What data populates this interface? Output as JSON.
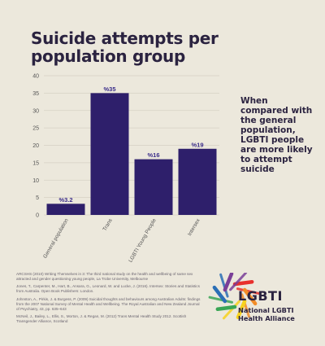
{
  "chart_data": {
    "type": "bar",
    "title": "Suicide attempts per population group",
    "categories": [
      "General population",
      "Trans",
      "LGBTI Young People",
      "Intersex"
    ],
    "values": [
      3.2,
      35,
      16,
      19
    ],
    "data_labels": [
      "%3.2",
      "%35",
      "%16",
      "%19"
    ],
    "xlabel": "",
    "ylabel": "",
    "ylim": [
      0,
      40
    ],
    "yticks": [
      0,
      5,
      10,
      15,
      20,
      25,
      30,
      35,
      40
    ],
    "grid": true,
    "bar_color": "#2e1f6b",
    "label_color": "#3a2c8a"
  },
  "side_note": "When compared with the general population, LGBTI people are more likely to attempt suicide",
  "references": [
    "ARCSHS (2010) Writing Themselves in 3: The third national study on the health and wellbeing of same sex attracted and gender questioning young people, La Trobe University, Melbourne",
    "Jones, T., Carpenter, M., Hart, B., Ansara, G., Leonard, W. and Lucke, J. (2016). Intersex: Stories and Statistics from Australia. Open Book Publishers: London.",
    "Johnston, A., Pirkis, J. & Burgess, P. (2009) Suicidal thoughts and behaviours among Australian Adults: findings from the 2007 National Survey of Mental Health and Wellbeing. The Royal Australian and New Zealand Journal of Psychiatry, 43, pp. 635–643",
    "McNeil, J., Bailey, L., Ellis, S., Morton, J. & Regan, M. (2012) Trans Mental Health Study 2012. Scottish Transgender Alliance, Scotland"
  ],
  "logo": {
    "name": "LGBTI",
    "org": "National LGBTI Health Alliance",
    "colors": [
      "#e8302c",
      "#f28c28",
      "#f7d21f",
      "#3aa655",
      "#2b6fb6",
      "#7a3f98"
    ]
  }
}
